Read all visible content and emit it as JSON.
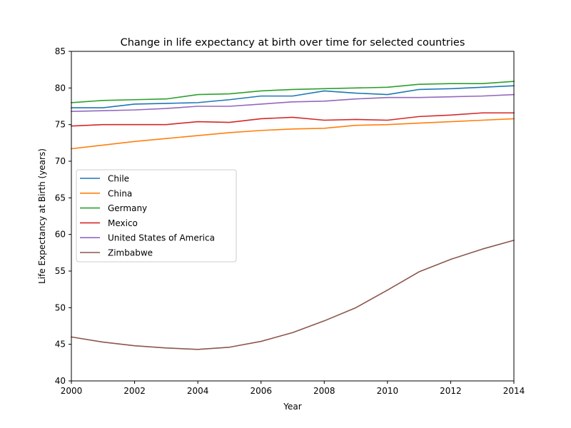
{
  "chart_data": {
    "type": "line",
    "title": "Change in life expectancy at birth over time for selected countries",
    "xlabel": "Year",
    "ylabel": "Life Expectancy at Birth (years)",
    "xlim": [
      2000,
      2014
    ],
    "ylim": [
      40,
      85
    ],
    "x_ticks": [
      2000,
      2002,
      2004,
      2006,
      2008,
      2010,
      2012,
      2014
    ],
    "y_ticks": [
      40,
      45,
      50,
      55,
      60,
      65,
      70,
      75,
      80,
      85
    ],
    "grid": false,
    "legend_position": "center-left",
    "x": [
      2000,
      2001,
      2002,
      2003,
      2004,
      2005,
      2006,
      2007,
      2008,
      2009,
      2010,
      2011,
      2012,
      2013,
      2014
    ],
    "series": [
      {
        "name": "Chile",
        "color": "#1f77b4",
        "values": [
          77.3,
          77.3,
          77.8,
          77.9,
          78.0,
          78.4,
          78.9,
          78.9,
          79.6,
          79.3,
          79.1,
          79.8,
          79.9,
          80.1,
          80.3
        ]
      },
      {
        "name": "China",
        "color": "#ff7f0e",
        "values": [
          71.7,
          72.2,
          72.7,
          73.1,
          73.5,
          73.9,
          74.2,
          74.4,
          74.5,
          74.9,
          75.0,
          75.2,
          75.4,
          75.6,
          75.8
        ]
      },
      {
        "name": "Germany",
        "color": "#2ca02c",
        "values": [
          78.0,
          78.3,
          78.4,
          78.5,
          79.1,
          79.2,
          79.6,
          79.8,
          79.9,
          80.0,
          80.1,
          80.5,
          80.6,
          80.6,
          80.9
        ]
      },
      {
        "name": "Mexico",
        "color": "#d62728",
        "values": [
          74.8,
          75.0,
          75.0,
          75.0,
          75.4,
          75.3,
          75.8,
          76.0,
          75.6,
          75.7,
          75.6,
          76.1,
          76.3,
          76.6,
          76.6
        ]
      },
      {
        "name": "United States of America",
        "color": "#9467bd",
        "values": [
          76.8,
          76.9,
          77.0,
          77.2,
          77.5,
          77.5,
          77.8,
          78.1,
          78.2,
          78.5,
          78.7,
          78.7,
          78.8,
          78.9,
          79.1
        ]
      },
      {
        "name": "Zimbabwe",
        "color": "#8c564b",
        "values": [
          46.0,
          45.3,
          44.8,
          44.5,
          44.3,
          44.6,
          45.4,
          46.6,
          48.2,
          50.0,
          52.4,
          54.9,
          56.6,
          58.0,
          59.2
        ]
      }
    ]
  }
}
